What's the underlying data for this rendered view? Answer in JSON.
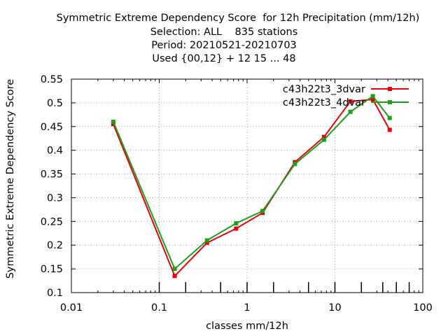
{
  "chart_data": {
    "type": "line",
    "title_lines": [
      "Symmetric Extreme Dependency Score  for 12h Precipitation (mm/12h)",
      "Selection: ALL    835 stations",
      "Period: 20210521-20210703",
      "Used {00,12} + 12 15 ... 48"
    ],
    "xlabel": "classes mm/12h",
    "ylabel": "Symmetric Extreme Dependency Score",
    "x_scale": "log",
    "xlim": [
      0.01,
      100
    ],
    "ylim": [
      0.1,
      0.55
    ],
    "x_ticks": [
      "0.01",
      "0.1",
      "1",
      "10",
      "100"
    ],
    "y_ticks": [
      "0.1",
      "0.15",
      "0.2",
      "0.25",
      "0.3",
      "0.35",
      "0.4",
      "0.45",
      "0.5",
      "0.55"
    ],
    "class_marks": [
      0.1,
      0.2,
      0.5,
      1,
      2,
      5,
      10,
      20,
      35,
      50,
      70
    ],
    "grid": true,
    "legend_position": "top-right",
    "series": [
      {
        "name": "c43h22t3_3dvar",
        "color": "#e8000b",
        "x": [
          0.03,
          0.15,
          0.35,
          0.75,
          1.5,
          3.5,
          7.5,
          15,
          27,
          42
        ],
        "y": [
          0.455,
          0.135,
          0.205,
          0.235,
          0.268,
          0.375,
          0.428,
          0.503,
          0.507,
          0.443
        ]
      },
      {
        "name": "c43h22t3_4dvar",
        "color": "#1aa01a",
        "x": [
          0.03,
          0.15,
          0.35,
          0.75,
          1.5,
          3.5,
          7.5,
          15,
          27,
          42
        ],
        "y": [
          0.46,
          0.15,
          0.21,
          0.246,
          0.272,
          0.371,
          0.422,
          0.481,
          0.514,
          0.468
        ]
      }
    ]
  }
}
